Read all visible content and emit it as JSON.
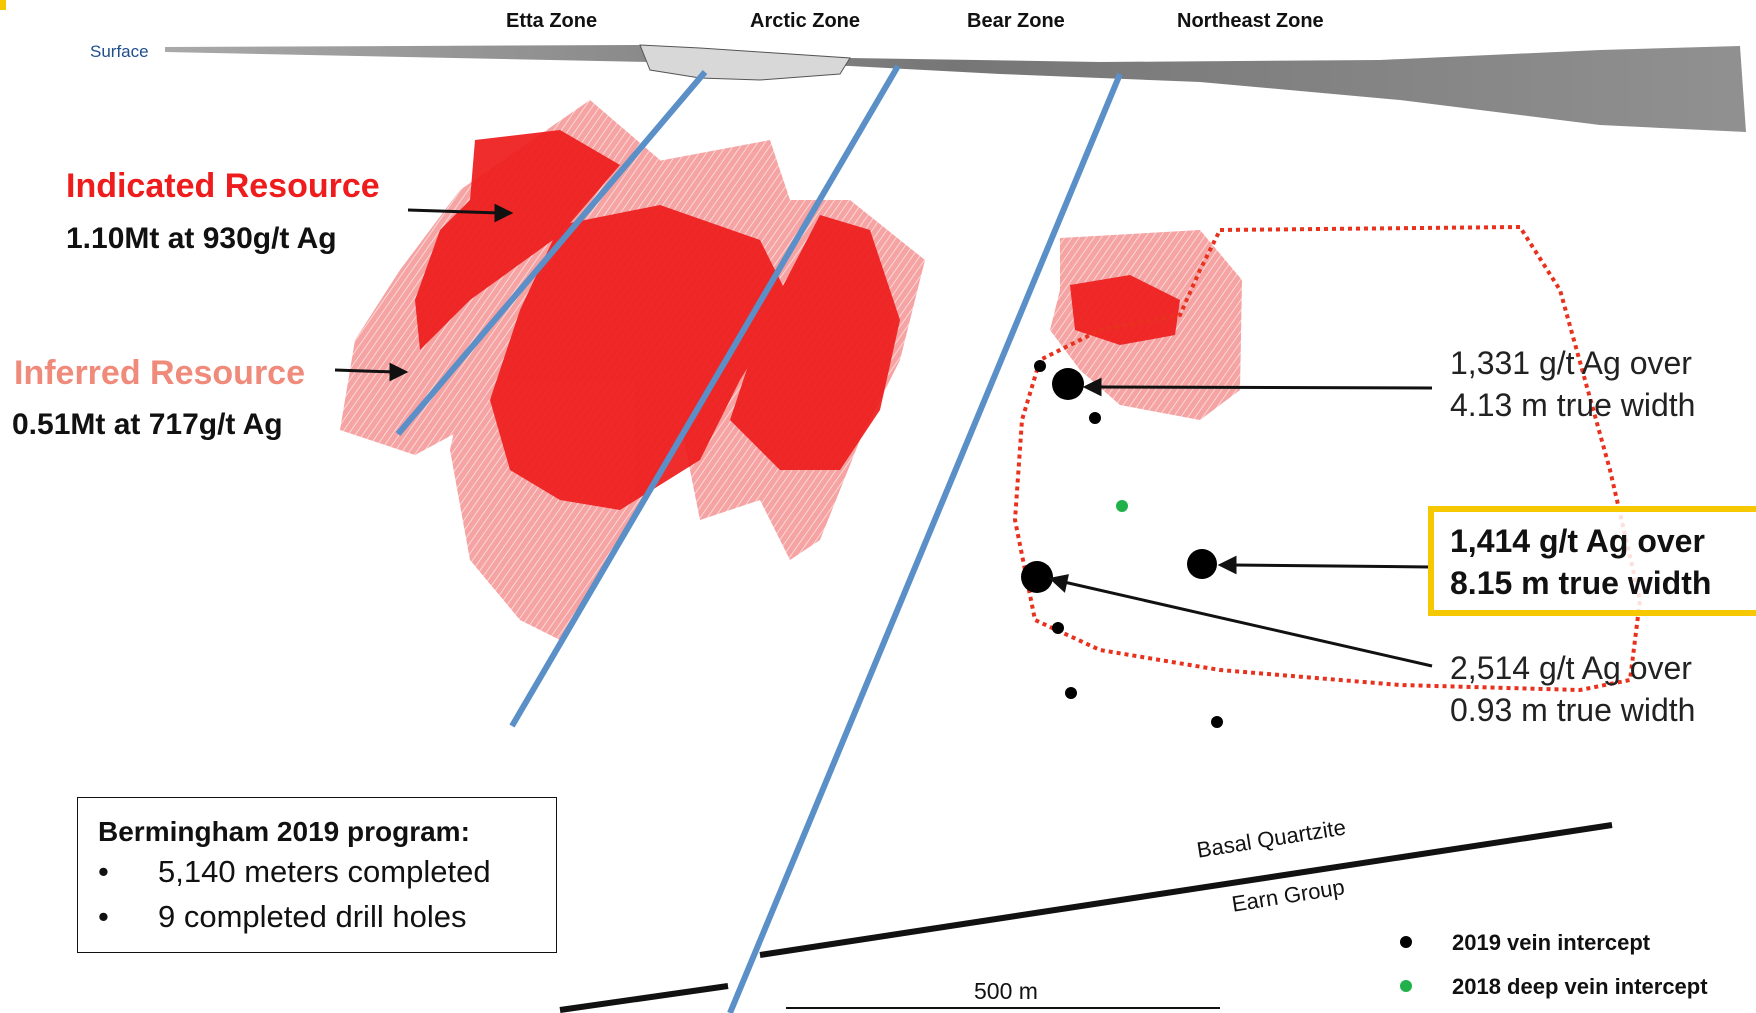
{
  "zones": [
    "Etta Zone",
    "Arctic Zone",
    "Bear Zone",
    "Northeast Zone"
  ],
  "surface_label": "Surface",
  "indicated": {
    "title": "Indicated Resource",
    "value": "1.10Mt at 930g/t Ag"
  },
  "inferred": {
    "title": "Inferred Resource",
    "value": "0.51Mt at 717g/t Ag"
  },
  "intercepts": [
    {
      "line1": "1,331 g/t Ag over",
      "line2": "4.13 m true width"
    },
    {
      "line1": "1,414 g/t Ag over",
      "line2": "8.15 m true width"
    },
    {
      "line1": "2,514 g/t Ag over",
      "line2": "0.93 m true width"
    }
  ],
  "program": {
    "title": "Bermingham 2019 program:",
    "items": [
      "5,140 meters completed",
      "9 completed drill holes"
    ]
  },
  "contact": {
    "upper": "Basal Quartzite",
    "lower": "Earn Group"
  },
  "scale_label": "500 m",
  "legend": [
    {
      "label": "2019 vein intercept",
      "color": "#000000"
    },
    {
      "label": "2018 deep vein intercept",
      "color": "#22b04a"
    }
  ],
  "colors": {
    "indicated": "#ee1c1c",
    "inferred": "#f28a8a",
    "fault": "#5b8fc7",
    "outline": "#e8321e",
    "highlight": "#f5c800",
    "surface_text": "#1f4e8c"
  }
}
